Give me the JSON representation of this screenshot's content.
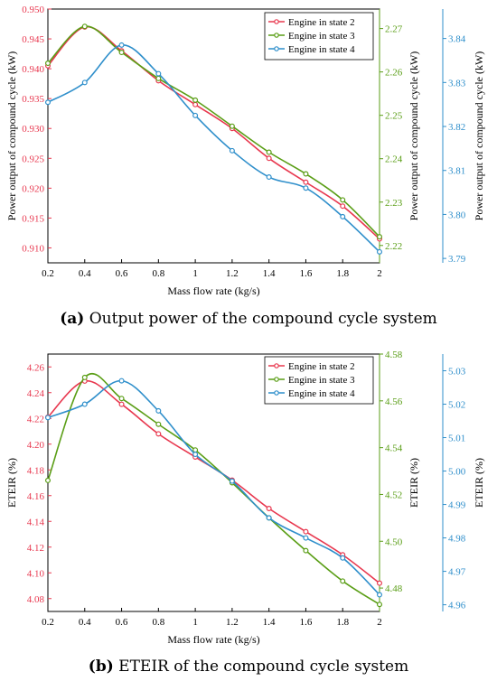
{
  "captions": [
    {
      "tag": "(a)",
      "text": " Output power of the compound cycle system"
    },
    {
      "tag": "(b)",
      "text": " ETEIR of the compound cycle system"
    }
  ],
  "colors": {
    "state2": "#e8384f",
    "state3": "#5a9e16",
    "state4": "#2f8fcb"
  },
  "chart_data": [
    {
      "type": "line",
      "xlabel": "Mass flow rate (kg/s)",
      "xlim": [
        0.2,
        2.0
      ],
      "xticks": [
        "0.2",
        "0.4",
        "0.6",
        "0.8",
        "1",
        "1.2",
        "1.4",
        "1.6",
        "1.8",
        "2"
      ],
      "axes": [
        {
          "side": "left",
          "ylabel": "Power output of compound cycle (kW)",
          "ylim": [
            0.9075,
            0.95
          ],
          "ticks": [
            0.91,
            0.915,
            0.92,
            0.925,
            0.93,
            0.935,
            0.94,
            0.945,
            0.95
          ],
          "decimals": 3,
          "color": "#e8384f"
        },
        {
          "side": "mid",
          "ylabel": "Power output of compound cycle (kW)",
          "ylim": [
            2.216,
            2.2745
          ],
          "ticks": [
            2.22,
            2.23,
            2.24,
            2.25,
            2.26,
            2.27
          ],
          "decimals": 2,
          "color": "#5a9e16"
        },
        {
          "side": "right",
          "ylabel": "Power output of compound cycle (kW)",
          "ylim": [
            3.789,
            3.8467
          ],
          "ticks": [
            3.79,
            3.8,
            3.81,
            3.82,
            3.83,
            3.84
          ],
          "decimals": 2,
          "color": "#2f8fcb"
        }
      ],
      "legend_position": "top-right",
      "x": [
        0.2,
        0.4,
        0.6,
        0.8,
        1.0,
        1.2,
        1.4,
        1.6,
        1.8,
        2.0
      ],
      "series": [
        {
          "name": "Engine in state 2",
          "axis": 0,
          "color": "#e8384f",
          "values": [
            0.9405,
            0.947,
            0.943,
            0.938,
            0.934,
            0.93,
            0.925,
            0.921,
            0.917,
            0.9115
          ]
        },
        {
          "name": "Engine in state 3",
          "axis": 1,
          "color": "#5a9e16",
          "values": [
            2.262,
            2.2705,
            2.2645,
            2.2585,
            2.2535,
            2.2475,
            2.2415,
            2.2365,
            2.2305,
            2.222
          ]
        },
        {
          "name": "Engine in state 4",
          "axis": 2,
          "color": "#2f8fcb",
          "values": [
            3.8255,
            3.83,
            3.8385,
            3.832,
            3.8225,
            3.8145,
            3.8085,
            3.806,
            3.7995,
            3.7915
          ]
        }
      ]
    },
    {
      "type": "line",
      "xlabel": "Mass flow rate (kg/s)",
      "xlim": [
        0.2,
        2.0
      ],
      "xticks": [
        "0.2",
        "0.4",
        "0.6",
        "0.8",
        "1",
        "1.2",
        "1.4",
        "1.6",
        "1.8",
        "2"
      ],
      "axes": [
        {
          "side": "left",
          "ylabel": "ETEIR (%)",
          "ylim": [
            4.07,
            4.27
          ],
          "ticks": [
            4.08,
            4.1,
            4.12,
            4.14,
            4.16,
            4.18,
            4.2,
            4.22,
            4.24,
            4.26
          ],
          "decimals": 2,
          "color": "#e8384f"
        },
        {
          "side": "mid",
          "ylabel": "ETEIR (%)",
          "ylim": [
            4.47,
            4.58
          ],
          "ticks": [
            4.48,
            4.5,
            4.52,
            4.54,
            4.56,
            4.58
          ],
          "decimals": 2,
          "color": "#5a9e16"
        },
        {
          "side": "right",
          "ylabel": "ETEIR (%)",
          "ylim": [
            4.958,
            5.035
          ],
          "ticks": [
            4.96,
            4.97,
            4.98,
            4.99,
            5.0,
            5.01,
            5.02,
            5.03
          ],
          "decimals": 2,
          "color": "#2f8fcb"
        }
      ],
      "legend_position": "top-right",
      "x": [
        0.2,
        0.4,
        0.6,
        0.8,
        1.0,
        1.2,
        1.4,
        1.6,
        1.8,
        2.0
      ],
      "series": [
        {
          "name": "Engine in state 2",
          "axis": 0,
          "color": "#e8384f",
          "values": [
            4.221,
            4.249,
            4.231,
            4.208,
            4.19,
            4.172,
            4.15,
            4.132,
            4.114,
            4.092
          ]
        },
        {
          "name": "Engine in state 3",
          "axis": 1,
          "color": "#5a9e16",
          "values": [
            4.526,
            4.57,
            4.561,
            4.55,
            4.539,
            4.525,
            4.51,
            4.496,
            4.483,
            4.473
          ]
        },
        {
          "name": "Engine in state 4",
          "axis": 2,
          "color": "#2f8fcb",
          "values": [
            5.016,
            5.02,
            5.027,
            5.018,
            5.005,
            4.997,
            4.986,
            4.98,
            4.974,
            4.963
          ]
        }
      ]
    }
  ]
}
